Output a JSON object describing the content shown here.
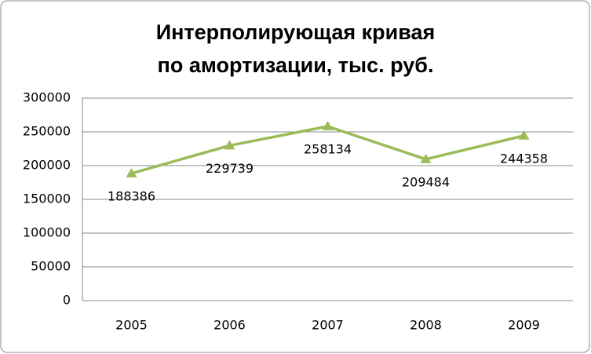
{
  "chart_data": {
    "type": "line",
    "title": "Интерполирующая кривая по амортизации, тыс. руб.",
    "categories": [
      "2005",
      "2006",
      "2007",
      "2008",
      "2009"
    ],
    "values": [
      188386,
      229739,
      258134,
      209484,
      244358
    ],
    "color": "#9bbb59",
    "ylim": [
      0,
      300000
    ],
    "yticks": [
      0,
      50000,
      100000,
      150000,
      200000,
      250000,
      300000
    ],
    "grid": true,
    "data_labels": true
  }
}
